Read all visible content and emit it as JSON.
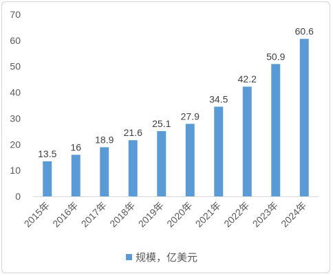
{
  "chart_data": {
    "type": "bar",
    "categories": [
      "2015年",
      "2016年",
      "2017年",
      "2018年",
      "2019年",
      "2020年",
      "2021年",
      "2022年",
      "2023年",
      "2024年"
    ],
    "series": [
      {
        "name": "规模，亿美元",
        "values": [
          13.5,
          16,
          18.9,
          21.6,
          25.1,
          27.9,
          34.5,
          42.2,
          50.9,
          60.6
        ],
        "labels": [
          "13.5",
          "16",
          "18.9",
          "21.6",
          "25.1",
          "27.9",
          "34.5",
          "42.2",
          "50.9",
          "60.6"
        ]
      }
    ],
    "yticks": [
      "0",
      "10",
      "20",
      "30",
      "40",
      "50",
      "60",
      "70"
    ],
    "ylim": [
      0,
      70
    ],
    "legend_placement": "bottom",
    "grid": false,
    "colors": {
      "bar": "#5b9bd5",
      "axis": "#d9d9d9"
    }
  }
}
